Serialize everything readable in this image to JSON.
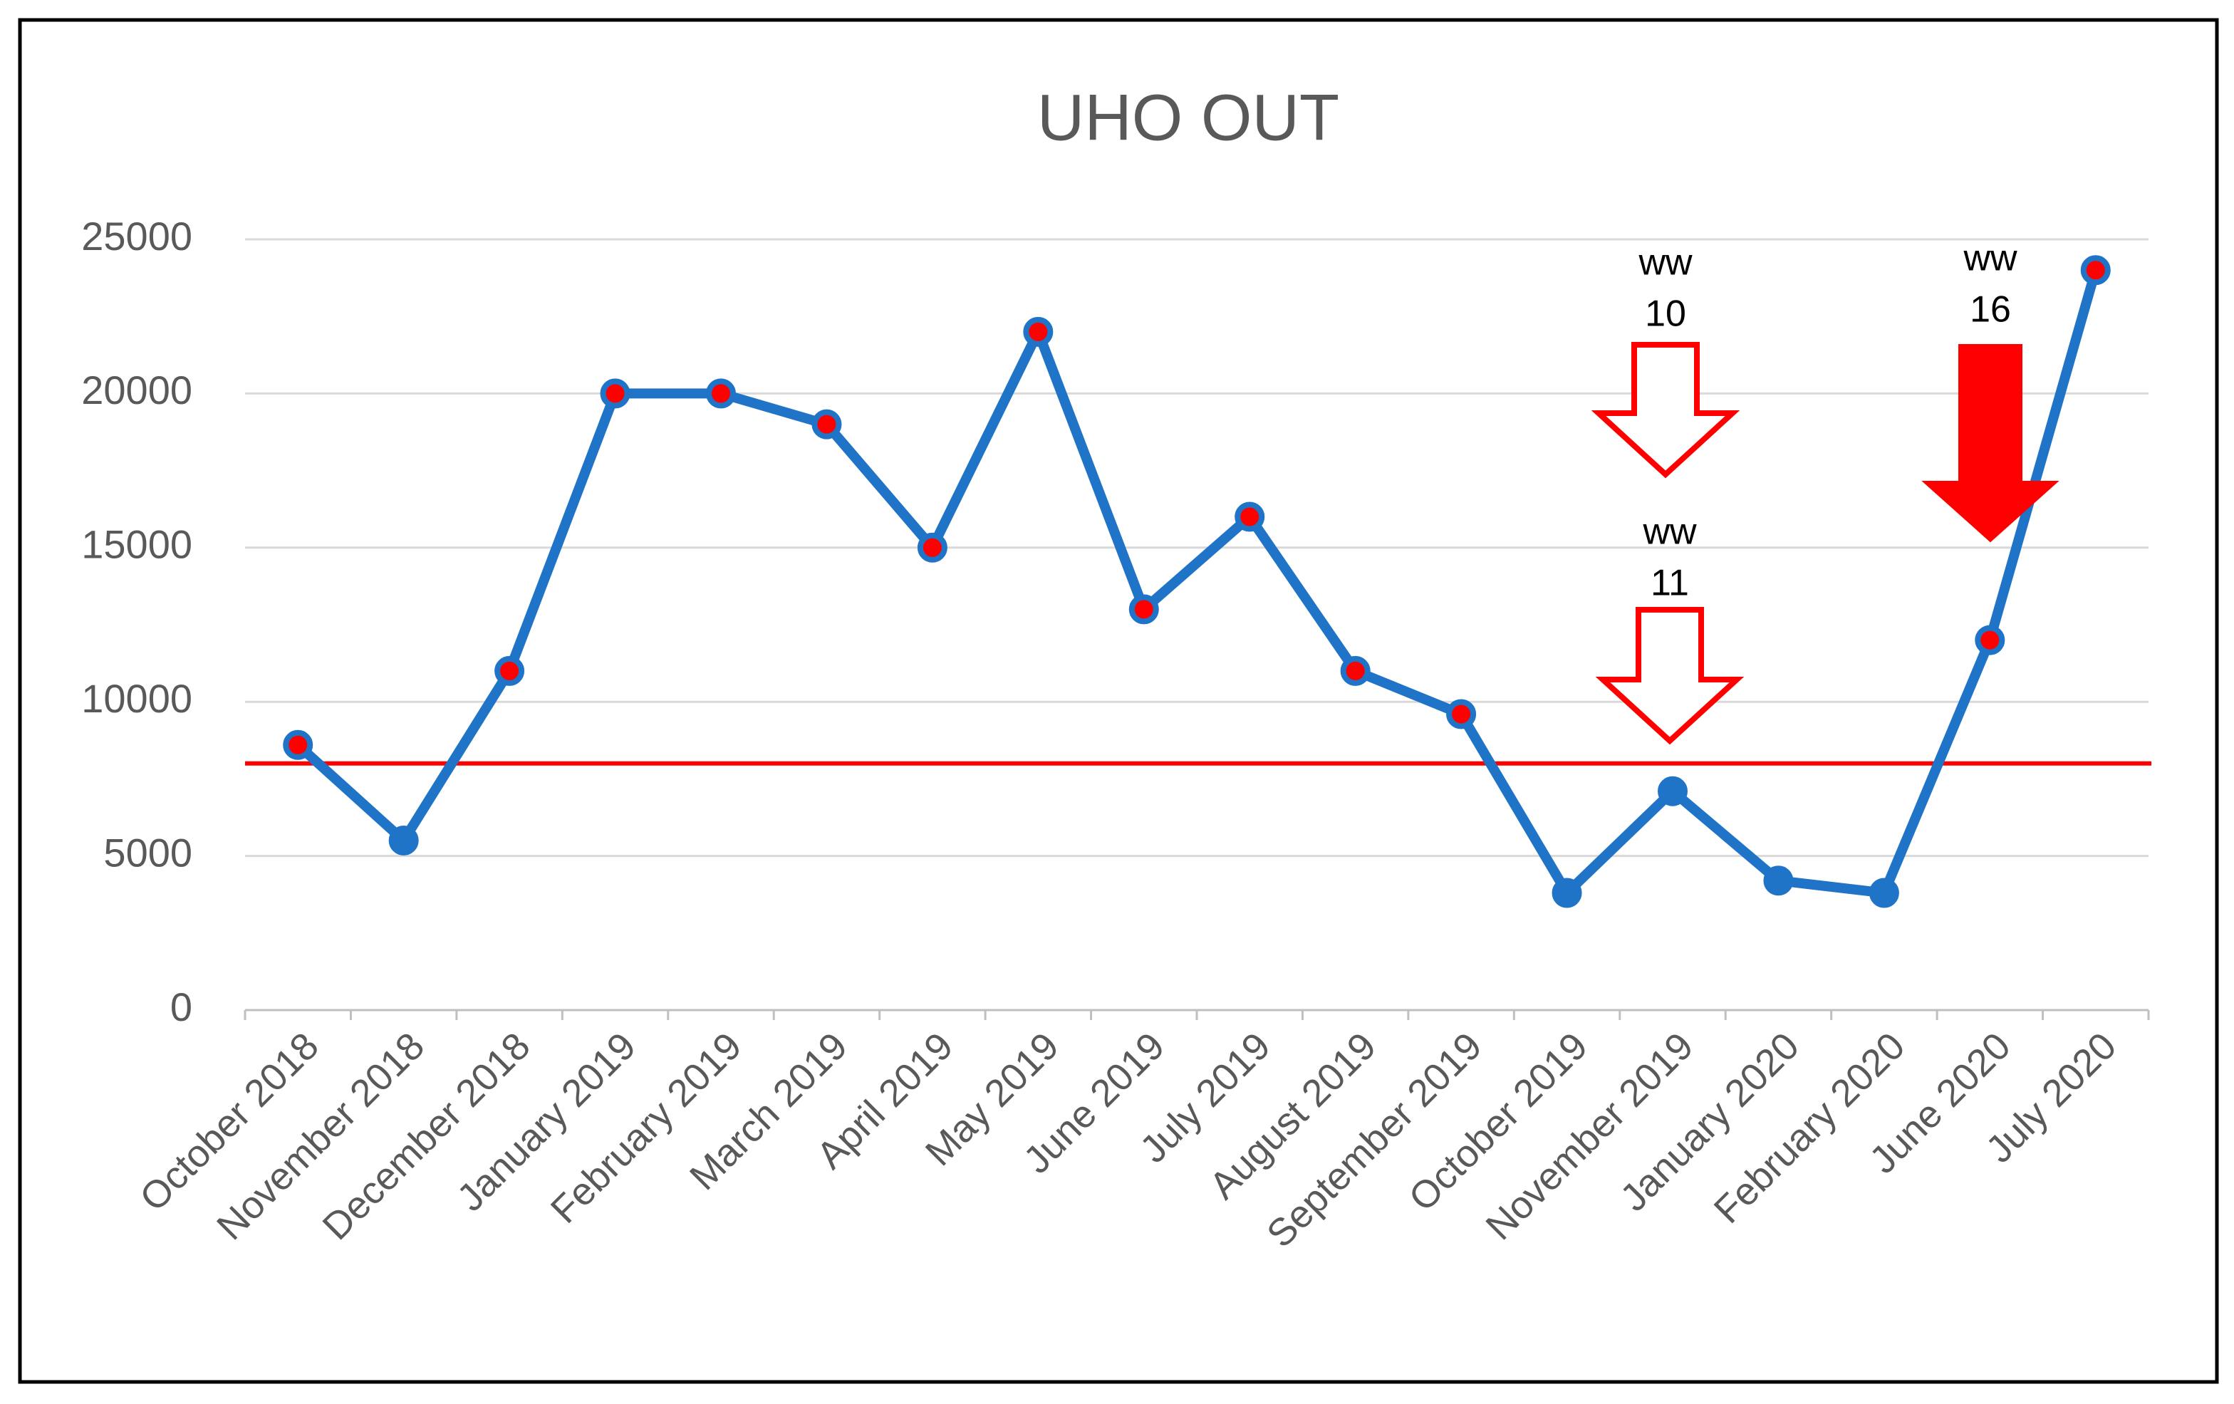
{
  "chart_data": {
    "type": "line",
    "title": "UHO OUT",
    "categories": [
      "October 2018",
      "November 2018",
      "December 2018",
      "January 2019",
      "February 2019",
      "March 2019",
      "April 2019",
      "May 2019",
      "June 2019",
      "July 2019",
      "August 2019",
      "September 2019",
      "October 2019",
      "November 2019",
      "January 2020",
      "February 2020",
      "June 2020",
      "July 2020"
    ],
    "values": [
      8600,
      5500,
      11000,
      20000,
      20000,
      19000,
      15000,
      22000,
      13000,
      16000,
      11000,
      9600,
      3800,
      7100,
      4200,
      3800,
      12000,
      24000
    ],
    "color": "#1f74c8",
    "marker_color_above": "#ff0000",
    "marker_color_below": "#1f74c8",
    "threshold": {
      "value": 8000,
      "color": "#ff0000"
    },
    "ylim": [
      0,
      25000
    ],
    "yticks": [
      0,
      5000,
      10000,
      15000,
      20000,
      25000
    ],
    "grid": true,
    "annotations": [
      {
        "lines": [
          "ww",
          "10"
        ],
        "arrow": "hollow"
      },
      {
        "lines": [
          "ww",
          "11"
        ],
        "arrow": "hollow"
      },
      {
        "lines": [
          "ww",
          "16"
        ],
        "arrow": "solid"
      }
    ]
  }
}
